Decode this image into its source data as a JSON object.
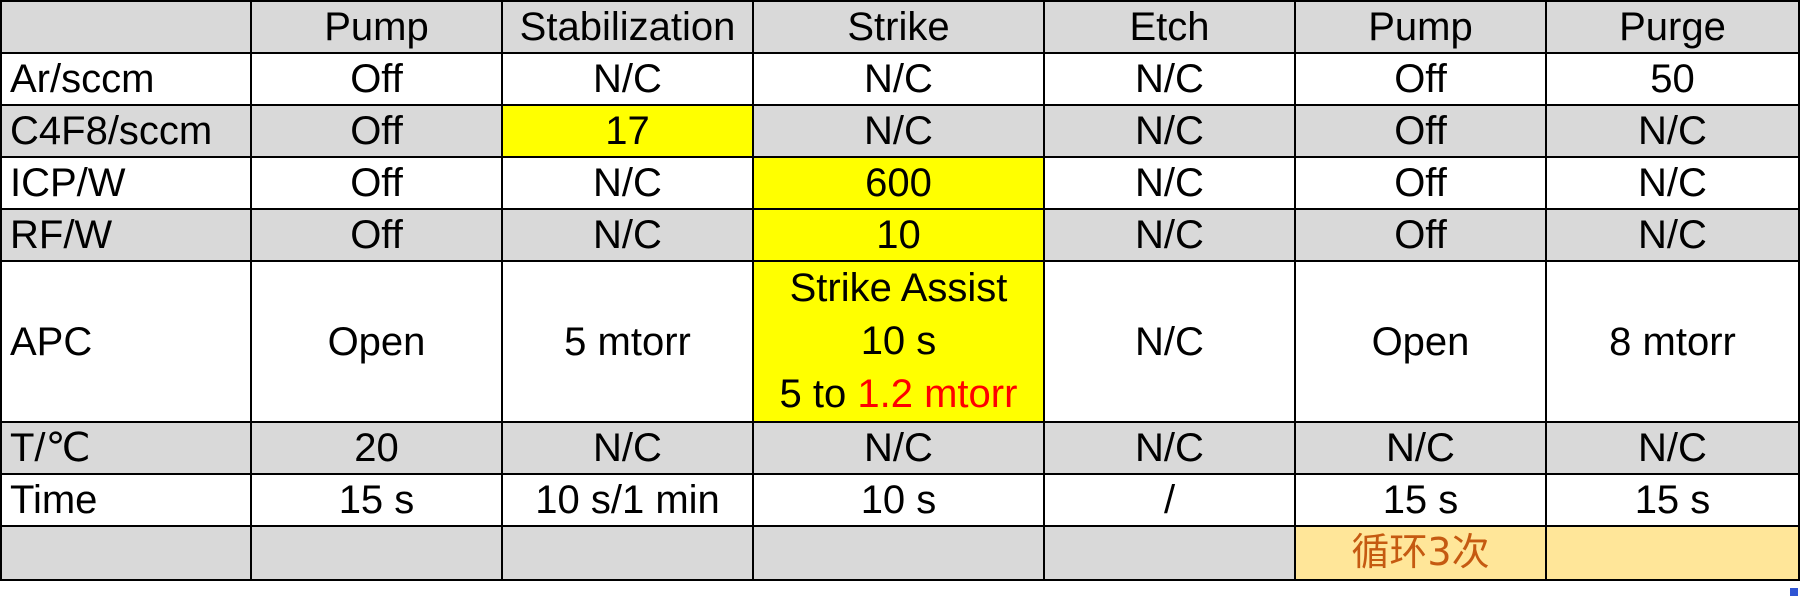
{
  "header": [
    "",
    "Pump",
    "Stabilization",
    "Strike",
    "Etch",
    "Pump",
    "Purge"
  ],
  "rows": {
    "ar": [
      "Ar/sccm",
      "Off",
      "N/C",
      "N/C",
      "N/C",
      "Off",
      "50"
    ],
    "c4f8": [
      "C4F8/sccm",
      "Off",
      "17",
      "N/C",
      "N/C",
      "Off",
      "N/C"
    ],
    "icp": [
      "ICP/W",
      "Off",
      "N/C",
      "600",
      "N/C",
      "Off",
      "N/C"
    ],
    "rf": [
      "RF/W",
      "Off",
      "N/C",
      "10",
      "N/C",
      "Off",
      "N/C"
    ],
    "apc": {
      "label": "APC",
      "pump": "Open",
      "stabilization": "5 mtorr",
      "strike_line1": "Strike Assist",
      "strike_line2": "10 s",
      "strike_line3_prefix": "5 to ",
      "strike_line3_red": "1.2 mtorr",
      "etch": "N/C",
      "pump2": "Open",
      "purge": "8 mtorr"
    },
    "t": [
      "T/℃",
      "20",
      "N/C",
      "N/C",
      "N/C",
      "N/C",
      "N/C"
    ],
    "time": [
      "Time",
      "15 s",
      "10 s/1 min",
      "10 s",
      "/",
      "15 s",
      "15 s"
    ]
  },
  "footer_note": "循环3次",
  "colors": {
    "shade": "#d9d9d9",
    "highlight": "#ffff00",
    "note_fill": "#ffe699",
    "note_text": "#c55a11",
    "emphasis_red": "#ff0000"
  }
}
